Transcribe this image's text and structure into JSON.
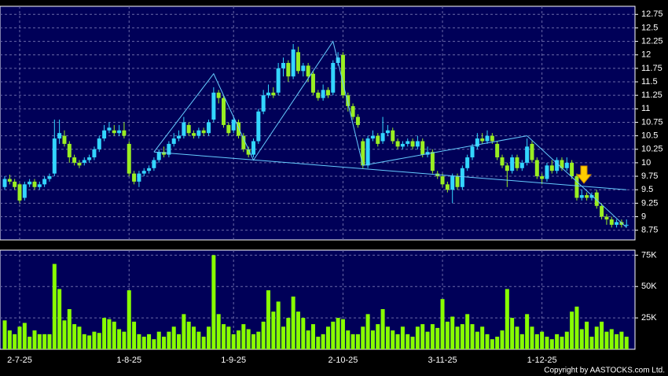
{
  "chart_data": {
    "type": "candlestick",
    "categories": [
      null,
      null,
      null,
      "2-7-25",
      null,
      null,
      null,
      null,
      null,
      null,
      null,
      null,
      null,
      null,
      null,
      null,
      null,
      null,
      null,
      null,
      null,
      null,
      null,
      null,
      null,
      "1-8-25",
      null,
      null,
      null,
      null,
      null,
      null,
      null,
      null,
      null,
      null,
      null,
      null,
      null,
      null,
      null,
      null,
      null,
      null,
      null,
      null,
      "1-9-25",
      null,
      null,
      null,
      null,
      null,
      null,
      null,
      null,
      null,
      null,
      null,
      null,
      null,
      null,
      null,
      null,
      null,
      null,
      null,
      null,
      null,
      "2-10-25",
      null,
      null,
      null,
      null,
      null,
      null,
      null,
      null,
      null,
      null,
      null,
      null,
      null,
      null,
      null,
      null,
      null,
      null,
      null,
      "3-11-25",
      null,
      null,
      null,
      null,
      null,
      null,
      null,
      null,
      null,
      null,
      null,
      null,
      null,
      null,
      null,
      null,
      null,
      null,
      null,
      "1-12-25",
      null,
      null,
      null,
      null,
      null,
      null,
      null,
      null,
      null,
      null,
      null,
      null,
      null,
      null,
      null,
      null,
      null
    ],
    "open": [
      9.55,
      9.7,
      9.65,
      9.6,
      9.35,
      9.6,
      9.65,
      9.55,
      9.6,
      9.7,
      9.8,
      10.45,
      10.5,
      10.35,
      10.1,
      10.0,
      10.0,
      10.05,
      10.1,
      10.25,
      10.45,
      10.6,
      10.6,
      10.55,
      10.6,
      10.35,
      9.8,
      9.65,
      9.8,
      9.85,
      9.9,
      10.05,
      10.2,
      10.15,
      10.35,
      10.45,
      10.5,
      10.7,
      10.55,
      10.5,
      10.6,
      10.55,
      10.8,
      11.3,
      11.2,
      10.7,
      10.6,
      10.75,
      10.5,
      10.25,
      10.15,
      10.4,
      10.95,
      11.25,
      11.3,
      11.3,
      11.75,
      11.85,
      11.6,
      12.05,
      11.7,
      11.8,
      11.65,
      11.3,
      11.2,
      11.35,
      11.3,
      11.85,
      12.0,
      11.25,
      11.05,
      10.85,
      10.4,
      9.95,
      10.45,
      10.5,
      10.4,
      10.55,
      10.6,
      10.4,
      10.3,
      10.35,
      10.4,
      10.3,
      10.4,
      10.15,
      10.2,
      9.8,
      9.75,
      9.6,
      9.5,
      9.75,
      9.55,
      9.9,
      10.1,
      10.3,
      10.45,
      10.4,
      10.5,
      10.35,
      10.1,
      9.95,
      9.85,
      10.1,
      9.9,
      10.0,
      10.35,
      10.05,
      9.75,
      9.7,
      9.95,
      9.85,
      10.05,
      9.9,
      10.0,
      9.75,
      9.35,
      9.4,
      9.35,
      9.45,
      9.2,
      9.0,
      8.95,
      8.85,
      8.9,
      8.85
    ],
    "high": [
      9.75,
      9.78,
      9.7,
      9.62,
      9.65,
      9.7,
      9.7,
      9.65,
      9.75,
      9.8,
      10.8,
      10.8,
      10.6,
      10.4,
      10.15,
      10.05,
      10.1,
      10.15,
      10.3,
      10.5,
      10.7,
      10.75,
      10.7,
      10.7,
      10.75,
      10.4,
      9.85,
      9.85,
      9.9,
      9.95,
      10.1,
      10.25,
      10.3,
      10.4,
      10.55,
      10.6,
      10.85,
      10.75,
      10.6,
      10.65,
      10.65,
      10.8,
      11.4,
      11.35,
      11.25,
      10.75,
      10.85,
      10.8,
      10.55,
      10.3,
      10.45,
      11.0,
      11.35,
      11.45,
      11.4,
      11.85,
      11.95,
      11.9,
      12.2,
      12.15,
      11.85,
      11.85,
      11.7,
      11.35,
      11.45,
      11.4,
      11.9,
      12.05,
      12.05,
      11.3,
      11.1,
      10.9,
      10.45,
      10.5,
      10.6,
      10.55,
      10.85,
      10.7,
      10.65,
      10.45,
      10.4,
      10.45,
      10.45,
      10.5,
      10.45,
      10.3,
      10.25,
      9.85,
      9.8,
      9.65,
      9.8,
      9.8,
      9.95,
      10.15,
      10.35,
      10.55,
      10.55,
      10.6,
      10.55,
      10.4,
      10.15,
      10.0,
      10.15,
      10.15,
      10.05,
      10.45,
      10.4,
      10.1,
      9.8,
      10.0,
      10.05,
      10.1,
      10.1,
      10.1,
      10.05,
      9.8,
      9.5,
      9.45,
      9.45,
      9.5,
      9.25,
      9.05,
      9.0,
      8.95,
      8.95,
      8.95
    ],
    "low": [
      9.5,
      9.6,
      9.5,
      9.25,
      9.3,
      9.55,
      9.5,
      9.5,
      9.55,
      9.65,
      9.75,
      10.35,
      10.3,
      10.0,
      9.95,
      9.9,
      9.95,
      10.0,
      10.05,
      10.2,
      10.4,
      10.55,
      10.5,
      10.5,
      10.45,
      9.75,
      9.6,
      9.55,
      9.75,
      9.8,
      9.85,
      10.0,
      10.1,
      10.1,
      10.3,
      10.4,
      10.45,
      10.5,
      10.45,
      10.45,
      10.5,
      10.5,
      10.75,
      11.1,
      10.65,
      10.5,
      10.55,
      10.45,
      10.2,
      10.1,
      10.1,
      10.35,
      10.9,
      11.2,
      11.2,
      11.25,
      11.6,
      11.5,
      11.55,
      11.65,
      11.6,
      11.5,
      11.25,
      11.15,
      11.15,
      11.2,
      11.25,
      11.8,
      11.2,
      10.95,
      10.8,
      10.65,
      9.9,
      9.9,
      10.4,
      10.3,
      10.35,
      10.5,
      10.35,
      10.25,
      10.25,
      10.3,
      10.25,
      10.25,
      10.1,
      10.1,
      9.8,
      9.7,
      9.55,
      9.45,
      9.25,
      9.5,
      9.5,
      9.85,
      10.05,
      10.25,
      10.35,
      10.35,
      10.35,
      10.05,
      9.9,
      9.55,
      9.8,
      9.85,
      9.85,
      9.95,
      10.0,
      9.7,
      9.6,
      9.65,
      9.8,
      9.8,
      9.85,
      9.85,
      9.7,
      9.3,
      9.3,
      9.3,
      9.3,
      9.15,
      8.95,
      8.85,
      8.8,
      8.8,
      8.8,
      8.8
    ],
    "close": [
      9.7,
      9.65,
      9.55,
      9.3,
      9.6,
      9.65,
      9.55,
      9.6,
      9.7,
      9.75,
      10.45,
      10.55,
      10.35,
      10.1,
      10.0,
      9.95,
      10.05,
      10.1,
      10.25,
      10.45,
      10.6,
      10.65,
      10.55,
      10.6,
      10.5,
      9.8,
      9.65,
      9.8,
      9.85,
      9.9,
      10.05,
      10.2,
      10.15,
      10.35,
      10.45,
      10.5,
      10.75,
      10.55,
      10.5,
      10.6,
      10.55,
      10.75,
      11.3,
      11.2,
      10.7,
      10.55,
      10.8,
      10.5,
      10.25,
      10.15,
      10.4,
      10.95,
      11.25,
      11.3,
      11.25,
      11.75,
      11.85,
      11.6,
      12.1,
      11.7,
      11.8,
      11.6,
      11.3,
      11.2,
      11.35,
      11.25,
      11.85,
      11.95,
      11.25,
      11.05,
      10.85,
      10.7,
      9.95,
      10.45,
      10.5,
      10.35,
      10.55,
      10.6,
      10.4,
      10.3,
      10.35,
      10.4,
      10.3,
      10.4,
      10.15,
      10.2,
      9.85,
      9.75,
      9.6,
      9.5,
      9.75,
      9.55,
      9.9,
      10.1,
      10.3,
      10.45,
      10.4,
      10.5,
      10.4,
      10.1,
      9.95,
      9.85,
      10.1,
      9.9,
      10.0,
      10.3,
      10.05,
      9.75,
      9.7,
      9.95,
      9.85,
      10.05,
      9.9,
      10.0,
      9.75,
      9.35,
      9.4,
      9.35,
      9.4,
      9.2,
      9.0,
      8.95,
      8.85,
      8.9,
      8.85,
      8.85
    ],
    "volume": [
      23000,
      15000,
      12000,
      18000,
      21000,
      10000,
      15000,
      12000,
      12000,
      12000,
      68000,
      48000,
      23000,
      32000,
      20000,
      18000,
      12000,
      11000,
      14000,
      13000,
      25000,
      24000,
      22000,
      16000,
      14000,
      47000,
      22000,
      12000,
      10000,
      12000,
      8000,
      14000,
      10000,
      14000,
      18000,
      12000,
      28000,
      22000,
      18000,
      14000,
      10000,
      18000,
      75000,
      28000,
      20000,
      18000,
      12000,
      15000,
      20000,
      16000,
      12000,
      14000,
      22000,
      47000,
      30000,
      38000,
      18000,
      25000,
      42000,
      30000,
      25000,
      15000,
      20000,
      10000,
      12000,
      18000,
      22000,
      25000,
      24000,
      15000,
      12000,
      12000,
      18000,
      28000,
      15000,
      20000,
      32000,
      18000,
      15000,
      12000,
      18000,
      12000,
      10000,
      18000,
      20000,
      14000,
      20000,
      17000,
      40000,
      22000,
      26000,
      18000,
      20000,
      28000,
      20000,
      14000,
      18000,
      12000,
      8000,
      10000,
      15000,
      48000,
      25000,
      18000,
      12000,
      28000,
      18000,
      12000,
      14000,
      10000,
      8000,
      12000,
      10000,
      14000,
      30000,
      34000,
      16000,
      22000,
      10000,
      18000,
      22000,
      14000,
      16000,
      12000,
      14000,
      10000
    ],
    "up_color": "#33d6ff",
    "down_color": "#99ee22",
    "volume_color": "#88ff00",
    "ylim": [
      8.57,
      12.9
    ],
    "yticks": [
      8.75,
      9,
      9.25,
      9.5,
      9.75,
      10,
      10.25,
      10.5,
      10.75,
      11,
      11.25,
      11.5,
      11.75,
      12,
      12.25,
      12.5,
      12.75
    ],
    "volume_ylim": [
      0,
      79000
    ],
    "volume_yticks": [
      {
        "value": 25000,
        "label": "25K"
      },
      {
        "value": 50000,
        "label": "50K"
      },
      {
        "value": 75000,
        "label": "75K"
      }
    ],
    "grid": true,
    "pattern_lines": [
      {
        "color": "#66ccff",
        "x": [
          30,
          42,
          50,
          66,
          72,
          105,
          125
        ],
        "y": [
          10.2,
          11.65,
          10.05,
          12.25,
          9.95,
          10.5,
          8.8
        ]
      },
      {
        "color": "#66ccff",
        "x": [
          30,
          125
        ],
        "y": [
          10.2,
          9.5
        ]
      }
    ],
    "copyright": "Copyright by AASTOCKS.com Ltd."
  }
}
